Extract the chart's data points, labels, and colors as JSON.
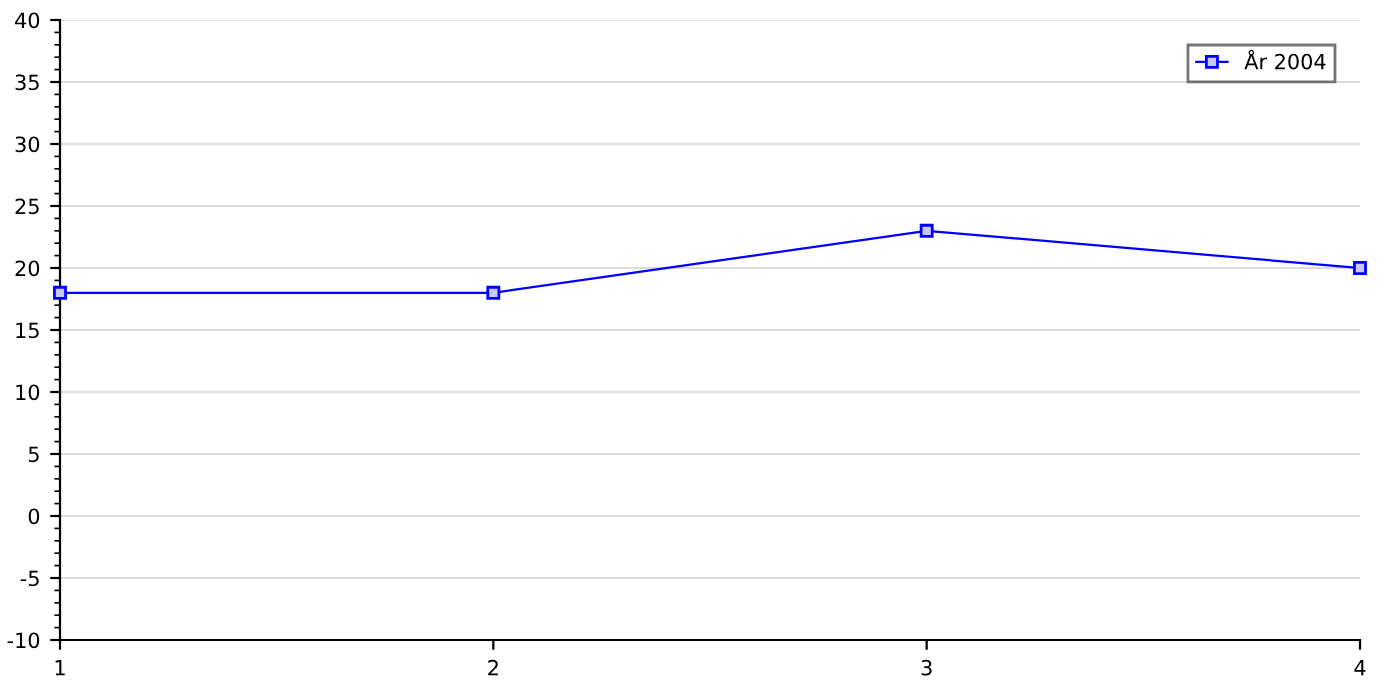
{
  "chart_data": {
    "type": "line",
    "x": [
      1,
      2,
      3,
      4
    ],
    "series": [
      {
        "name": "År 2004",
        "color": "#0000ff",
        "values": [
          18,
          18,
          23,
          20
        ]
      }
    ],
    "xlim": [
      1,
      4
    ],
    "xticks": [
      1,
      2,
      3,
      4
    ],
    "ylim": [
      -10,
      40
    ],
    "yticks": [
      -10,
      -5,
      0,
      5,
      10,
      15,
      20,
      25,
      30,
      35,
      40
    ],
    "grid": "y",
    "legend": "top right",
    "marker": "square",
    "line_style": "solid"
  }
}
